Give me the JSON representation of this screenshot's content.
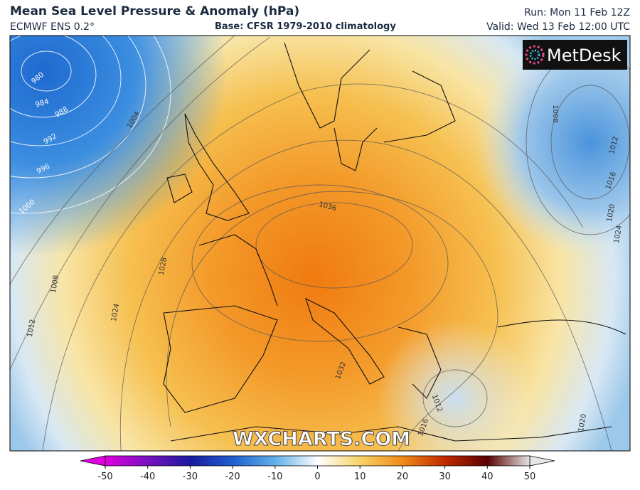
{
  "header": {
    "title": "Mean Sea Level Pressure & Anomaly (hPa)",
    "subtitle": "ECMWF ENS 0.2°",
    "base": "Base: CFSR 1979-2010 climatology",
    "run": "Run: Mon 11 Feb 12Z",
    "valid": "Valid: Wed 13 Feb 12:00 UTC"
  },
  "map": {
    "logo": "MetDesk",
    "watermark": "WXCHARTS.COM",
    "isobar_labels": [
      980,
      984,
      988,
      992,
      996,
      1000,
      1004,
      1008,
      1012,
      1024,
      1028,
      1036,
      1032,
      1012,
      1016,
      1008,
      1012,
      1016,
      1020,
      1024,
      1020
    ]
  },
  "colorbar": {
    "ticks": [
      -50,
      -40,
      -30,
      -20,
      -10,
      0,
      10,
      20,
      30,
      40,
      50
    ],
    "colors": [
      "#e000e0",
      "#7a10c0",
      "#1a1aa0",
      "#1e5fd0",
      "#5fb0e8",
      "#ffffff",
      "#f6d466",
      "#f08a18",
      "#c02a00",
      "#5a0000",
      "#e6e6e6"
    ]
  }
}
